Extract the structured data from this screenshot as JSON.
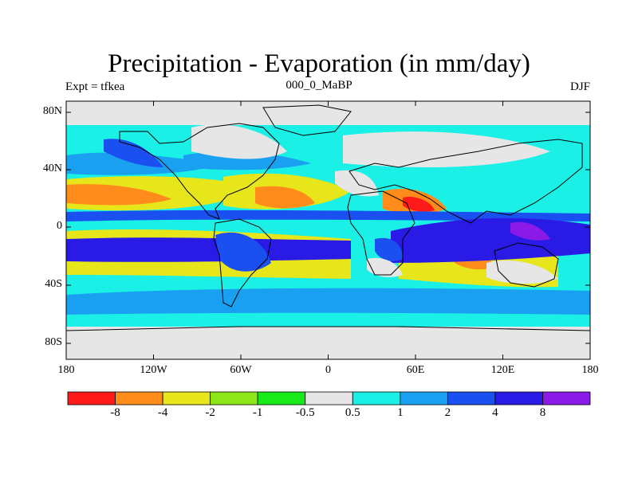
{
  "title": "Precipitation - Evaporation (in mm/day)",
  "subtitle": "000_0_MaBP",
  "left_label": "Expt = tfkea",
  "right_label": "DJF",
  "lat_ticks": [
    "80N",
    "40N",
    "0",
    "40S",
    "80S"
  ],
  "lon_ticks": [
    "180",
    "120W",
    "60W",
    "0",
    "60E",
    "120E",
    "180"
  ],
  "colorbar": {
    "colors": [
      "#ff1a1a",
      "#ff8c1a",
      "#e6e61a",
      "#8ce61a",
      "#1aea1a",
      "#e6e6e6",
      "#1af0e6",
      "#1aa0f0",
      "#1a50f0",
      "#2a1ae6",
      "#8c1ae6"
    ],
    "labels": [
      "-8",
      "-4",
      "-2",
      "-1",
      "-0.5",
      "0.5",
      "1",
      "2",
      "4",
      "8"
    ]
  }
}
